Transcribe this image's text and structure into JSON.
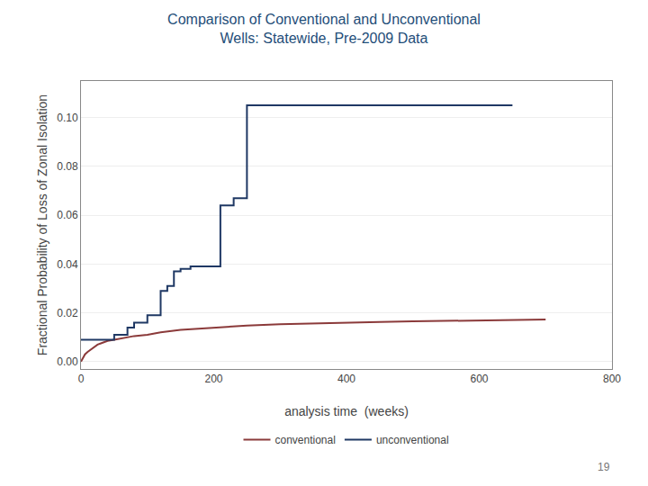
{
  "chart_data": {
    "type": "line",
    "title": "Comparison of Conventional and Unconventional\nWells: Statewide, Pre-2009 Data",
    "x_label": "analysis time  (weeks)",
    "y_label": "Fractional Probability of Loss of Zonal Isolation",
    "xlim": [
      0,
      800
    ],
    "ylim": [
      -0.003,
      0.115
    ],
    "xticks": [
      0,
      200,
      400,
      600,
      800
    ],
    "yticks": [
      {
        "value": 0.0,
        "label": "0.00"
      },
      {
        "value": 0.02,
        "label": "0.02"
      },
      {
        "value": 0.04,
        "label": "0.04"
      },
      {
        "value": 0.06,
        "label": "0.06"
      },
      {
        "value": 0.08,
        "label": "0.08"
      },
      {
        "value": 0.1,
        "label": "0.10"
      }
    ],
    "grid": true,
    "legend": "bottom",
    "series": [
      {
        "name": "conventional",
        "type": "line",
        "color": "#8B3A3A",
        "x": [
          0,
          3,
          6,
          10,
          15,
          20,
          25,
          30,
          35,
          40,
          50,
          60,
          70,
          80,
          100,
          120,
          150,
          180,
          200,
          250,
          300,
          350,
          400,
          450,
          500,
          550,
          600,
          650,
          700
        ],
        "values": [
          0.0,
          0.0015,
          0.003,
          0.004,
          0.005,
          0.006,
          0.007,
          0.0075,
          0.008,
          0.0085,
          0.009,
          0.0095,
          0.01,
          0.0105,
          0.011,
          0.012,
          0.013,
          0.0135,
          0.014,
          0.0148,
          0.0153,
          0.0157,
          0.016,
          0.0163,
          0.0165,
          0.0167,
          0.0169,
          0.0171,
          0.0173
        ]
      },
      {
        "name": "unconventional",
        "type": "step",
        "color": "#1F3864",
        "x": [
          0,
          25,
          50,
          70,
          80,
          100,
          120,
          130,
          140,
          150,
          165,
          175,
          210,
          230,
          250,
          490,
          650
        ],
        "values": [
          0.009,
          0.009,
          0.011,
          0.014,
          0.016,
          0.019,
          0.029,
          0.031,
          0.037,
          0.038,
          0.039,
          0.039,
          0.064,
          0.067,
          0.105,
          0.105,
          0.105
        ]
      }
    ],
    "annotations": [
      {
        "text": "19"
      }
    ]
  }
}
